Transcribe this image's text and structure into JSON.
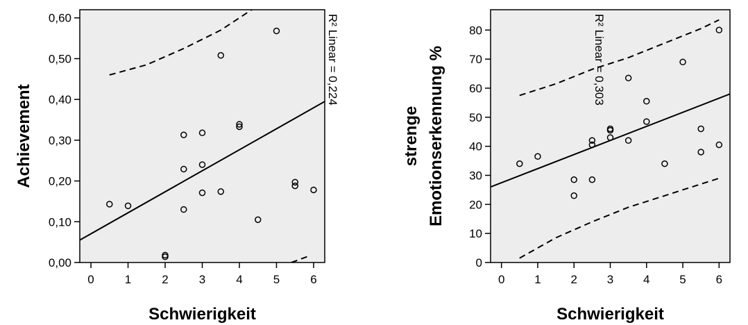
{
  "chart_data": [
    {
      "type": "scatter",
      "xlabel": "Schwierigkeit",
      "ylabel": "Achievement",
      "ylabel_lines": [
        "Achievement"
      ],
      "xlim": [
        -0.3,
        6.3
      ],
      "ylim": [
        0.0,
        0.62
      ],
      "x_ticks": [
        0,
        1,
        2,
        3,
        4,
        5,
        6
      ],
      "x_tick_labels": [
        "0",
        "1",
        "2",
        "3",
        "4",
        "5",
        "6"
      ],
      "y_ticks": [
        0.0,
        0.1,
        0.2,
        0.3,
        0.4,
        0.5,
        0.6
      ],
      "y_tick_labels": [
        "0,00",
        "0,10",
        "0,20",
        "0,30",
        "0,40",
        "0,50",
        "0,60"
      ],
      "r2_label": "R² Linear = 0,224",
      "plot_background": "#ededed",
      "grid": false,
      "points": [
        {
          "x": 0.5,
          "y": 0.143
        },
        {
          "x": 1.0,
          "y": 0.139
        },
        {
          "x": 2.0,
          "y": 0.018
        },
        {
          "x": 2.0,
          "y": 0.014
        },
        {
          "x": 2.5,
          "y": 0.313
        },
        {
          "x": 2.5,
          "y": 0.229
        },
        {
          "x": 2.5,
          "y": 0.13
        },
        {
          "x": 3.0,
          "y": 0.318
        },
        {
          "x": 3.0,
          "y": 0.24
        },
        {
          "x": 3.0,
          "y": 0.171
        },
        {
          "x": 3.5,
          "y": 0.508
        },
        {
          "x": 3.5,
          "y": 0.174
        },
        {
          "x": 4.0,
          "y": 0.339
        },
        {
          "x": 4.0,
          "y": 0.333
        },
        {
          "x": 4.5,
          "y": 0.105
        },
        {
          "x": 5.0,
          "y": 0.568
        },
        {
          "x": 5.5,
          "y": 0.197
        },
        {
          "x": 5.5,
          "y": 0.188
        },
        {
          "x": 6.0,
          "y": 0.178
        }
      ],
      "fit_line": {
        "x": [
          -0.3,
          6.3
        ],
        "y": [
          0.055,
          0.395
        ]
      },
      "ci_upper": {
        "x": [
          0.5,
          1.5,
          2.5,
          3.5,
          4.5
        ],
        "y": [
          0.46,
          0.485,
          0.525,
          0.57,
          0.63
        ]
      },
      "ci_lower": {
        "x": [
          5.4,
          5.85
        ],
        "y": [
          0.0,
          0.015
        ]
      }
    },
    {
      "type": "scatter",
      "xlabel": "Schwierigkeit",
      "ylabel": "strenge Emotionserkennung %",
      "ylabel_lines": [
        "strenge",
        "Emotionserkennung %"
      ],
      "xlim": [
        -0.3,
        6.3
      ],
      "ylim": [
        0,
        87
      ],
      "x_ticks": [
        0,
        1,
        2,
        3,
        4,
        5,
        6
      ],
      "x_tick_labels": [
        "0",
        "1",
        "2",
        "3",
        "4",
        "5",
        "6"
      ],
      "y_ticks": [
        0,
        10,
        20,
        30,
        40,
        50,
        60,
        70,
        80
      ],
      "y_tick_labels": [
        "0",
        "10",
        "20",
        "30",
        "40",
        "50",
        "60",
        "70",
        "80"
      ],
      "r2_label": "R² Linear = 0,303",
      "plot_background": "#ededed",
      "grid": false,
      "points": [
        {
          "x": 0.5,
          "y": 34
        },
        {
          "x": 1.0,
          "y": 36.5
        },
        {
          "x": 2.0,
          "y": 28.5
        },
        {
          "x": 2.0,
          "y": 23
        },
        {
          "x": 2.5,
          "y": 42
        },
        {
          "x": 2.5,
          "y": 40.5
        },
        {
          "x": 2.5,
          "y": 28.5
        },
        {
          "x": 3.0,
          "y": 46
        },
        {
          "x": 3.0,
          "y": 45.5
        },
        {
          "x": 3.0,
          "y": 43
        },
        {
          "x": 3.5,
          "y": 63.5
        },
        {
          "x": 3.5,
          "y": 42
        },
        {
          "x": 4.0,
          "y": 55.5
        },
        {
          "x": 4.0,
          "y": 48.5
        },
        {
          "x": 4.5,
          "y": 34
        },
        {
          "x": 5.0,
          "y": 69
        },
        {
          "x": 5.5,
          "y": 46
        },
        {
          "x": 5.5,
          "y": 38
        },
        {
          "x": 6.0,
          "y": 80
        },
        {
          "x": 6.0,
          "y": 40.5
        }
      ],
      "fit_line": {
        "x": [
          -0.3,
          6.3
        ],
        "y": [
          26,
          58
        ]
      },
      "ci_upper": {
        "x": [
          0.5,
          1.5,
          2.5,
          3.5,
          4.5,
          5.5,
          6.0
        ],
        "y": [
          57.5,
          61.5,
          66.5,
          70.5,
          75.5,
          80.5,
          83.5
        ]
      },
      "ci_lower": {
        "x": [
          0.5,
          1.5,
          2.5,
          3.5,
          4.5,
          5.5,
          6.0
        ],
        "y": [
          1.5,
          8.5,
          14,
          19,
          23,
          27,
          29
        ]
      }
    }
  ]
}
